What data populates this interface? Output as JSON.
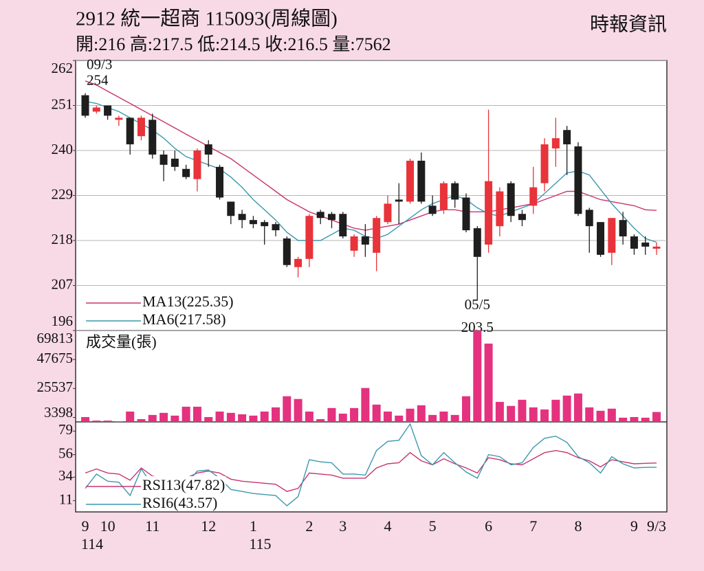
{
  "chart_data": [
    {
      "type": "candlestick",
      "title": "2912 統一超商 115093(周線圖)",
      "subtitle": "開:216 高:217.5 低:214.5 收:216.5 量:7562",
      "source": "時報資訊",
      "open": [
        253.5,
        249.5,
        251,
        247.5,
        248,
        243.5,
        247.5,
        239,
        238,
        235.5,
        233,
        241.5,
        236,
        227.5,
        224.5,
        223,
        222.5,
        222,
        218.5,
        211.5,
        213.5,
        225,
        224.5,
        224.5,
        215.5,
        219,
        215,
        222.5,
        228,
        227.5,
        237.5,
        226.5,
        225.5,
        232,
        228.5,
        221,
        217,
        221.5,
        232,
        224.5,
        226.5,
        232,
        240.5,
        245,
        241,
        225.5,
        222.5,
        215,
        223,
        219,
        217.5,
        216
      ],
      "high": [
        254,
        251,
        251,
        248.5,
        248,
        248.5,
        249,
        240,
        240,
        236.5,
        240.5,
        242.5,
        236.5,
        227.5,
        225.5,
        224,
        223,
        222.5,
        219,
        214,
        224.5,
        225.5,
        225,
        225,
        219.5,
        222,
        224,
        229,
        232,
        238,
        239.5,
        229,
        232.5,
        232.5,
        229.5,
        221.5,
        250,
        231,
        232.5,
        225.5,
        236,
        243,
        248,
        246,
        242,
        226,
        222.5,
        223.5,
        225,
        219.5,
        219,
        217.5
      ],
      "low": [
        248,
        249,
        247.5,
        246,
        239,
        242.5,
        238,
        232.5,
        235,
        233,
        230,
        236,
        228,
        222,
        221,
        221,
        217,
        219,
        211.5,
        209,
        211.5,
        222,
        221,
        218.5,
        214,
        214,
        210.5,
        222,
        222,
        227,
        227,
        224,
        224.5,
        226,
        220,
        203.5,
        215,
        219,
        222.5,
        221.5,
        224.5,
        230,
        236,
        234,
        224,
        215,
        214,
        212,
        217,
        214.5,
        214.5,
        214.5
      ],
      "close": [
        248.5,
        250.5,
        248.5,
        248,
        241.5,
        248,
        239,
        236.5,
        236,
        233.5,
        240,
        239,
        228.5,
        224,
        223,
        222,
        221.5,
        220.5,
        212,
        213.5,
        224,
        223.5,
        223,
        219,
        219,
        217,
        223.5,
        227,
        227.5,
        237.5,
        227.5,
        224.5,
        232,
        228,
        220.5,
        214,
        232.5,
        230,
        224,
        223,
        231,
        241.5,
        243,
        241.5,
        224.5,
        221.5,
        214.5,
        223.5,
        219,
        216,
        216.5,
        216.5
      ],
      "up_color": "#e8333a",
      "down_color": "#1e1e1e",
      "series": [
        {
          "name": "MA13(225.35)",
          "color": "#c8336e",
          "values": [
            257,
            256,
            254.5,
            253,
            251.5,
            250,
            248.5,
            247,
            245.5,
            244,
            242.5,
            241,
            239.5,
            238,
            236,
            234,
            232,
            230,
            228,
            226.5,
            225,
            224,
            223,
            222,
            221,
            220.5,
            221,
            221.5,
            222,
            223,
            224,
            225,
            225.5,
            225.5,
            225,
            225,
            225,
            225.5,
            226,
            226.5,
            227,
            228,
            229,
            230,
            230,
            229,
            228,
            227.5,
            227,
            226.5,
            225.5,
            225.35
          ]
        },
        {
          "name": "MA6(217.58)",
          "color": "#3a98ae",
          "values": [
            252,
            251.5,
            250.5,
            249.5,
            248,
            246.5,
            245,
            243,
            240.5,
            238.5,
            237.5,
            236.5,
            235.5,
            233.5,
            231,
            228,
            225.5,
            223,
            220,
            218,
            218,
            218,
            219.5,
            221,
            220.5,
            219,
            218.5,
            219.5,
            221.5,
            223.5,
            225.5,
            227,
            228,
            229,
            228,
            226,
            224.5,
            224,
            225,
            226,
            227,
            229.5,
            232,
            234.5,
            235,
            234,
            230.5,
            227,
            224,
            221,
            218.5,
            217.58
          ]
        }
      ],
      "annotations": [
        {
          "date": "09/3",
          "value": 254
        },
        {
          "date": "05/5",
          "value": 203.5
        }
      ],
      "ylim": [
        196,
        262
      ],
      "yticks": [
        196,
        207,
        218,
        229,
        240,
        251,
        262
      ],
      "grid": true
    },
    {
      "type": "bar",
      "title": "成交量(張)",
      "color": "#e4327f",
      "title_color": "#c8336e",
      "values": [
        3700,
        1000,
        1000,
        300,
        7900,
        2100,
        5300,
        6900,
        4800,
        11600,
        11600,
        3700,
        7900,
        6900,
        5800,
        4800,
        7900,
        11100,
        19600,
        17500,
        7900,
        2100,
        10600,
        6300,
        10600,
        25900,
        13200,
        7900,
        4800,
        10100,
        12700,
        5300,
        7900,
        5300,
        19600,
        69813,
        59800,
        15300,
        12200,
        16900,
        11100,
        9500,
        16900,
        20100,
        21700,
        11100,
        8500,
        10100,
        3200,
        3700,
        3200,
        7562
      ],
      "ylim": [
        0,
        69813
      ],
      "yticks": [
        3398,
        25537,
        47675,
        69813
      ],
      "grid": false
    },
    {
      "type": "line",
      "categories": [
        "9",
        null,
        "10",
        null,
        null,
        null,
        "11",
        null,
        null,
        null,
        null,
        "12",
        null,
        null,
        null,
        "1",
        null,
        null,
        null,
        null,
        "2",
        null,
        null,
        "3",
        null,
        null,
        null,
        "4",
        null,
        null,
        null,
        "5",
        null,
        null,
        null,
        null,
        "6",
        null,
        null,
        null,
        "7",
        null,
        null,
        null,
        "8",
        null,
        null,
        null,
        null,
        "9",
        null,
        "9/3"
      ],
      "years": [
        "114",
        null,
        null,
        null,
        null,
        null,
        null,
        null,
        null,
        null,
        null,
        null,
        null,
        null,
        null,
        "115",
        null,
        null,
        null,
        null,
        null,
        null,
        null,
        null,
        null,
        null,
        null,
        null,
        null,
        null,
        null,
        null,
        null,
        null,
        null,
        null,
        null,
        null,
        null,
        null,
        null,
        null,
        null,
        null,
        null,
        null,
        null,
        null,
        null,
        null,
        null,
        null
      ],
      "series": [
        {
          "name": "RSI13(47.82)",
          "color": "#c8336e",
          "values": [
            38,
            42,
            38,
            37,
            31,
            43,
            35,
            33,
            32,
            33,
            38,
            40,
            38,
            32,
            30,
            29,
            28,
            27,
            20,
            23,
            38,
            37,
            36,
            33,
            33,
            33,
            43,
            47,
            48,
            58,
            50,
            46,
            52,
            47,
            43,
            38,
            53,
            51,
            47,
            46,
            52,
            58,
            60,
            58,
            53,
            50,
            44,
            51,
            49,
            47,
            47.5,
            47.82
          ]
        },
        {
          "name": "RSI6(43.57)",
          "color": "#3a98ae",
          "values": [
            23,
            37,
            30,
            29,
            16,
            42,
            26,
            25,
            25,
            27,
            40,
            41,
            33,
            22,
            20,
            18,
            17,
            16,
            6,
            15,
            51,
            49,
            48,
            37,
            37,
            36,
            60,
            69,
            70,
            86,
            55,
            46,
            58,
            48,
            39,
            33,
            56,
            54,
            46,
            48,
            63,
            72,
            74,
            68,
            54,
            48,
            38,
            54,
            47,
            43,
            43.5,
            43.57
          ]
        }
      ],
      "ylim": [
        0,
        88
      ],
      "yticks": [
        11,
        34,
        56,
        79
      ],
      "grid": false
    }
  ]
}
